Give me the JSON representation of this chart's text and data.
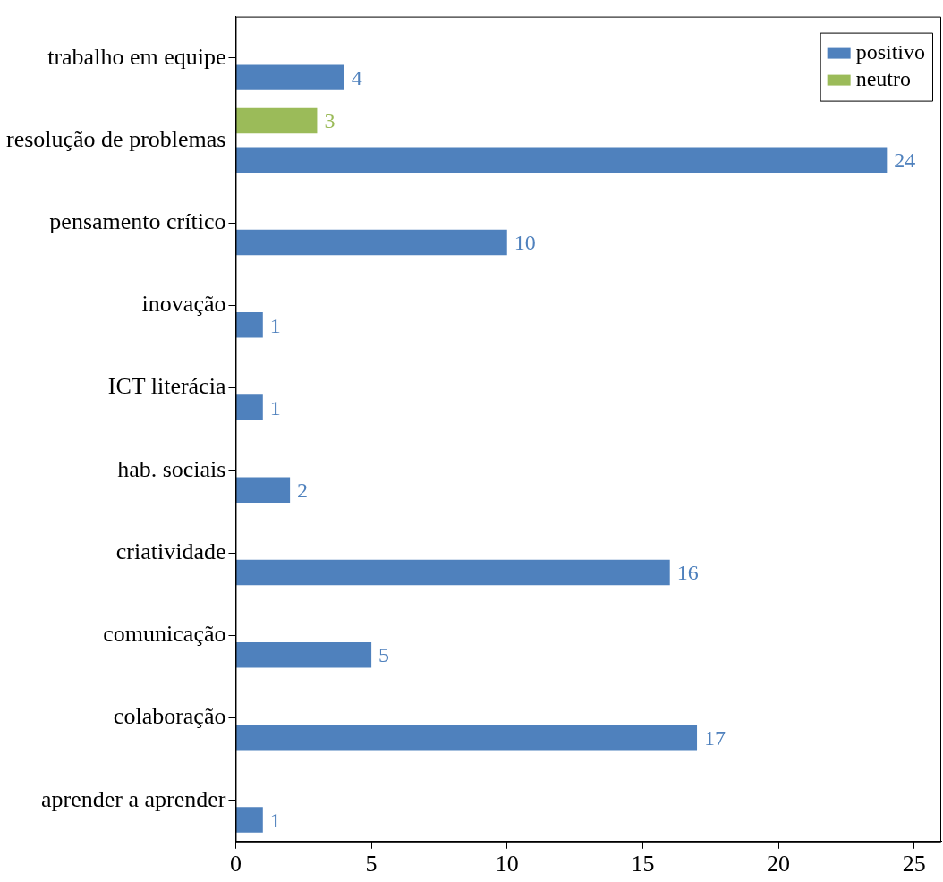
{
  "chart_data": {
    "type": "bar",
    "orientation": "horizontal",
    "categories": [
      "trabalho em equipe",
      "resolução de problemas",
      "pensamento crítico",
      "inovação",
      "ICT literácia",
      "hab. sociais",
      "criatividade",
      "comunicação",
      "colaboração",
      "aprender a aprender"
    ],
    "series": [
      {
        "name": "positivo",
        "color": "#4f81bd",
        "values": [
          4,
          24,
          10,
          1,
          1,
          2,
          16,
          5,
          17,
          1
        ]
      },
      {
        "name": "neutro",
        "color": "#9bbb59",
        "values": [
          null,
          3,
          null,
          null,
          null,
          null,
          null,
          null,
          null,
          null
        ]
      }
    ],
    "xlim": [
      0,
      26
    ],
    "xticks": [
      0,
      5,
      10,
      15,
      20,
      25
    ],
    "grid": false,
    "legend": "top right",
    "data_labels": true
  }
}
